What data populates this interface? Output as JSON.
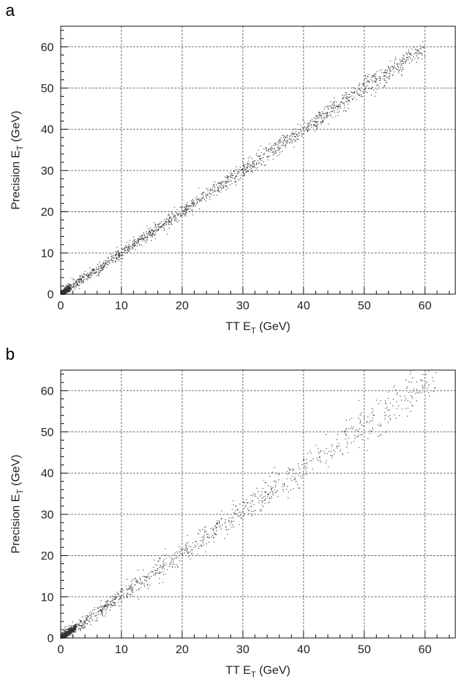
{
  "chart_data": [
    {
      "panel": "a",
      "type": "scatter",
      "title": "",
      "xlabel_main": "TT E",
      "xlabel_sub": "T",
      "xlabel_unit": " (GeV)",
      "ylabel_main": "Precision E",
      "ylabel_sub": "T",
      "ylabel_unit": " (GeV)",
      "xlim": [
        0,
        65
      ],
      "ylim": [
        0,
        65
      ],
      "xticks": [
        0,
        10,
        20,
        30,
        40,
        50,
        60
      ],
      "yticks": [
        0,
        10,
        20,
        30,
        40,
        50,
        60
      ],
      "grid": true,
      "trend": {
        "slope": 1.0,
        "intercept": 0,
        "x_range": [
          0,
          60
        ],
        "dense_core_max": 1.5
      }
    },
    {
      "panel": "b",
      "type": "scatter",
      "title": "",
      "xlabel_main": "TT E",
      "xlabel_sub": "T",
      "xlabel_unit": " (GeV)",
      "ylabel_main": "Precision E",
      "ylabel_sub": "T",
      "ylabel_unit": " (GeV)",
      "xlim": [
        0,
        65
      ],
      "ylim": [
        0,
        65
      ],
      "xticks": [
        0,
        10,
        20,
        30,
        40,
        50,
        60
      ],
      "yticks": [
        0,
        10,
        20,
        30,
        40,
        50,
        60
      ],
      "grid": true,
      "trend": {
        "slope": 1.03,
        "intercept": 0,
        "x_range": [
          0,
          62
        ],
        "dense_core_max": 2.5
      }
    }
  ],
  "colors": {
    "points": "#333333",
    "grid": "#555555",
    "axis": "#000000"
  }
}
